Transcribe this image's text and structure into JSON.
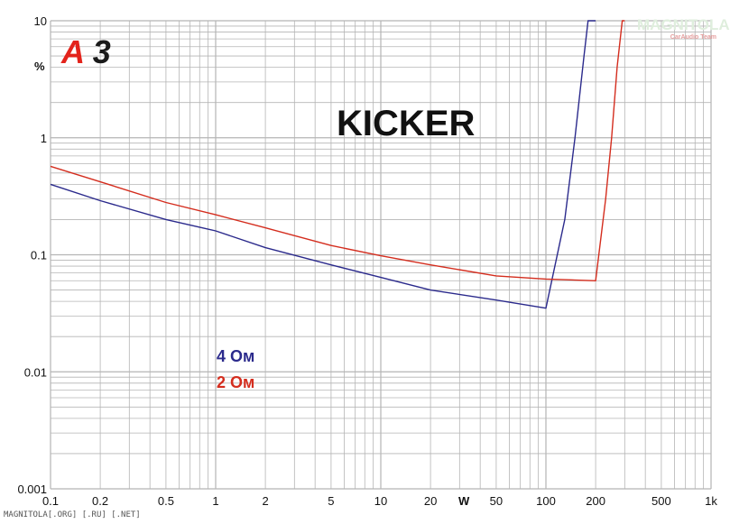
{
  "colors": {
    "series_4ohm": "#2b2a8c",
    "series_2ohm": "#d42d1e",
    "grid": "#b5b5b5",
    "logo_red": "#e3231b"
  },
  "logo": {
    "text": "A3"
  },
  "watermark": {
    "text": "MAGNITOLA",
    "sub": "CarAudio Team"
  },
  "footer": {
    "text": "MAGNITOLA[.ORG] [.RU] [.NET]"
  },
  "chart_data": {
    "type": "line",
    "title": "KICKER",
    "xlabel": "W",
    "ylabel": "%",
    "x_scale": "log",
    "y_scale": "log",
    "xlim": [
      0.1,
      1000
    ],
    "ylim": [
      0.001,
      10
    ],
    "grid": true,
    "x_ticks": [
      {
        "value": 0.1,
        "label": "0.1"
      },
      {
        "value": 0.2,
        "label": "0.2"
      },
      {
        "value": 0.5,
        "label": "0.5"
      },
      {
        "value": 1,
        "label": "1"
      },
      {
        "value": 2,
        "label": "2"
      },
      {
        "value": 5,
        "label": "5"
      },
      {
        "value": 10,
        "label": "10"
      },
      {
        "value": 20,
        "label": "20"
      },
      {
        "value": 50,
        "label": "50"
      },
      {
        "value": 100,
        "label": "100"
      },
      {
        "value": 200,
        "label": "200"
      },
      {
        "value": 500,
        "label": "500"
      },
      {
        "value": 1000,
        "label": "1k"
      }
    ],
    "y_ticks": [
      {
        "value": 10,
        "label": "10"
      },
      {
        "value": 1,
        "label": "1"
      },
      {
        "value": 0.1,
        "label": "0.1"
      },
      {
        "value": 0.01,
        "label": "0.01"
      },
      {
        "value": 0.001,
        "label": "0.001"
      }
    ],
    "series": [
      {
        "name": "4 Ом",
        "color": "#2b2a8c",
        "points": [
          [
            0.1,
            0.4
          ],
          [
            0.2,
            0.29
          ],
          [
            0.5,
            0.2
          ],
          [
            1,
            0.16
          ],
          [
            2,
            0.115
          ],
          [
            5,
            0.082
          ],
          [
            10,
            0.064
          ],
          [
            20,
            0.05
          ],
          [
            50,
            0.041
          ],
          [
            100,
            0.035
          ],
          [
            130,
            0.2
          ],
          [
            150,
            1.0
          ],
          [
            170,
            5.0
          ],
          [
            180,
            10
          ],
          [
            200,
            10
          ]
        ]
      },
      {
        "name": "2 Ом",
        "color": "#d42d1e",
        "points": [
          [
            0.1,
            0.57
          ],
          [
            0.2,
            0.42
          ],
          [
            0.5,
            0.28
          ],
          [
            1,
            0.22
          ],
          [
            2,
            0.17
          ],
          [
            5,
            0.12
          ],
          [
            10,
            0.098
          ],
          [
            20,
            0.082
          ],
          [
            50,
            0.066
          ],
          [
            100,
            0.062
          ],
          [
            200,
            0.06
          ],
          [
            230,
            0.3
          ],
          [
            250,
            1.0
          ],
          [
            270,
            4.0
          ],
          [
            290,
            10
          ],
          [
            300,
            10
          ]
        ]
      }
    ]
  }
}
